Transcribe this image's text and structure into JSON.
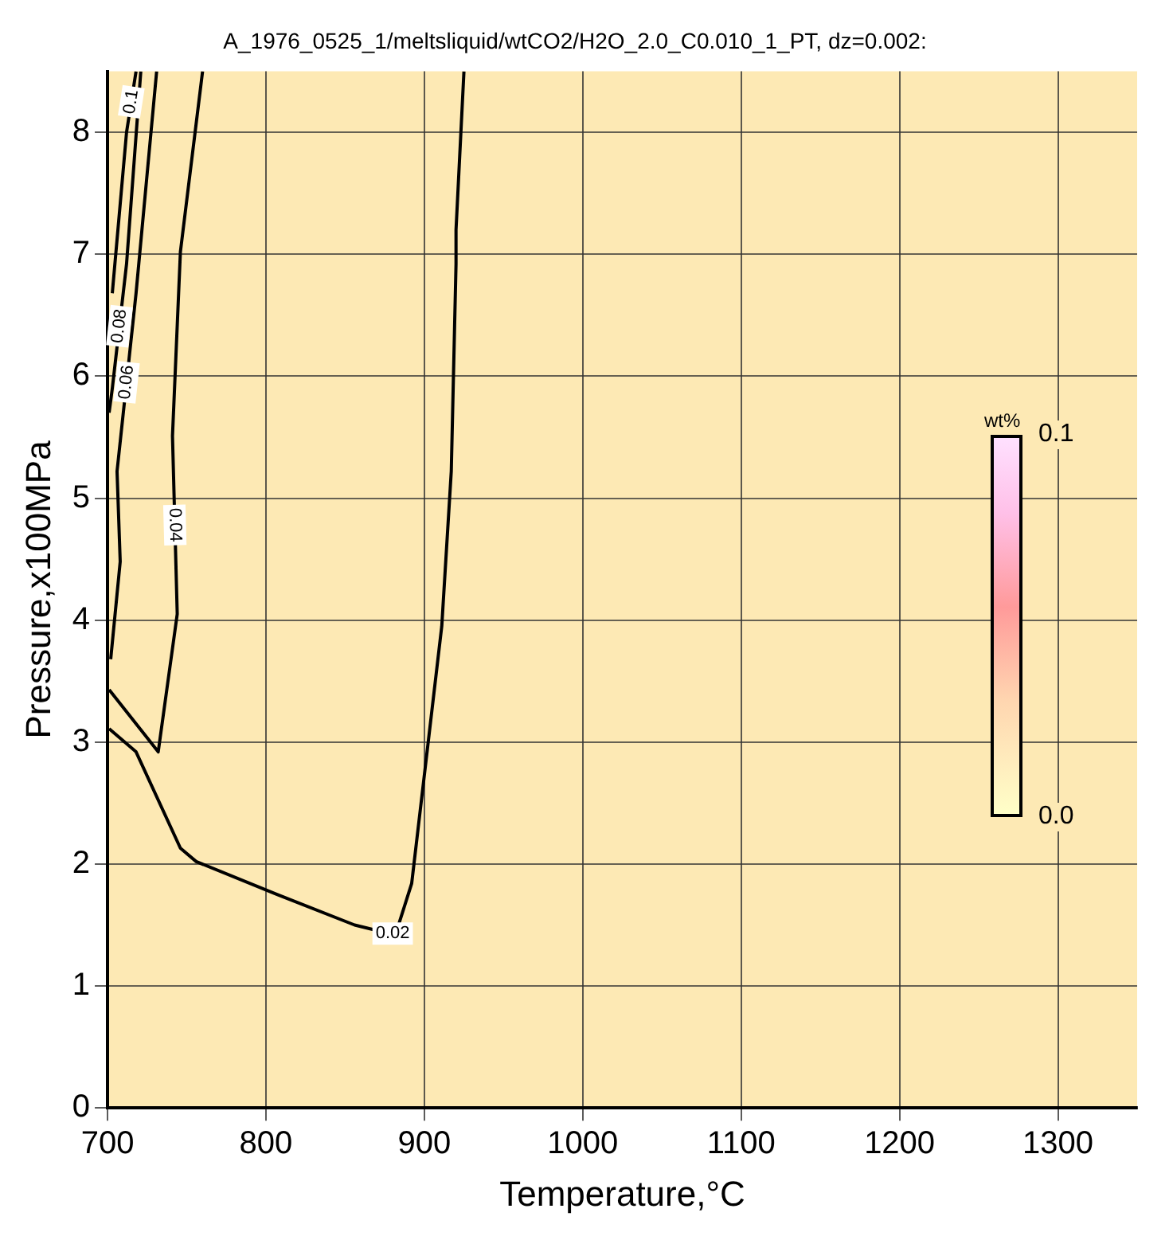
{
  "chart_data": {
    "type": "line",
    "title": "A_1976_0525_1/meltsliquid/wtCO2/H2O_2.0_C0.010_1_PT, dz=0.002:",
    "xlabel": "Temperature,°C",
    "ylabel": "Pressure,x100MPa",
    "clabel": "wt%",
    "xlim": [
      700,
      1350
    ],
    "xticks": [
      700,
      800,
      900,
      1000,
      1100,
      1200,
      1300
    ],
    "ylim": [
      0,
      8.5
    ],
    "yticks": [
      0,
      1,
      2,
      3,
      4,
      5,
      6,
      7,
      8
    ],
    "annotations": [
      "0.1",
      "0.0"
    ],
    "grid": true,
    "legend": false,
    "marker": "none",
    "line_style": "solid",
    "series": [
      {
        "name": "0.02",
        "color": "#000000",
        "x": [
          701,
          718,
          746,
          756,
          807,
          856,
          878,
          882,
          892,
          911,
          917,
          920,
          920,
          925
        ],
        "values": [
          3.11,
          2.92,
          2.13,
          2.02,
          1.75,
          1.5,
          1.43,
          1.43,
          1.84,
          3.95,
          5.22,
          6.92,
          7.2,
          8.5
        ]
      },
      {
        "name": "0.04",
        "color": "#000000",
        "x": [
          701,
          732,
          744,
          741,
          746,
          760
        ],
        "values": [
          3.43,
          2.92,
          4.05,
          5.51,
          7.02,
          8.5
        ]
      },
      {
        "name": "0.06",
        "color": "#000000",
        "x": [
          702,
          708,
          706,
          718,
          731
        ],
        "values": [
          3.68,
          4.48,
          5.22,
          6.68,
          8.5
        ]
      },
      {
        "name": "0.08",
        "color": "#000000",
        "x": [
          701,
          703,
          712,
          721
        ],
        "values": [
          5.7,
          5.9,
          6.92,
          8.5
        ]
      },
      {
        "name": "0.1",
        "color": "#000000",
        "x": [
          703,
          712,
          718
        ],
        "values": [
          6.68,
          8.0,
          8.5
        ]
      }
    ]
  }
}
